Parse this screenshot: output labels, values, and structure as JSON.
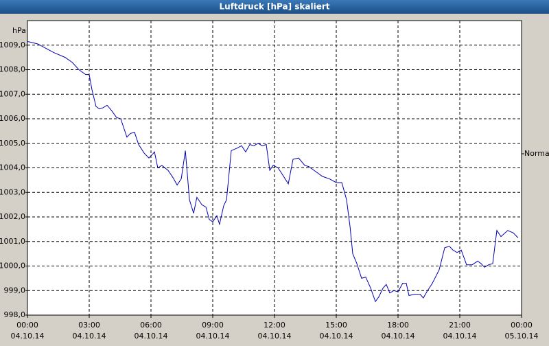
{
  "chart_data": {
    "type": "line",
    "title": "Luftdruck [hPa] skaliert",
    "y_label": "hPa",
    "annotation": "Normal",
    "xlim": [
      0,
      24
    ],
    "ylim": [
      998,
      1010
    ],
    "xticks": [
      {
        "value": 0,
        "label": "00:00",
        "date": "04.10.14"
      },
      {
        "value": 3,
        "label": "03:00",
        "date": "04.10.14"
      },
      {
        "value": 6,
        "label": "06:00",
        "date": "04.10.14"
      },
      {
        "value": 9,
        "label": "09:00",
        "date": "04.10.14"
      },
      {
        "value": 12,
        "label": "12:00",
        "date": "04.10.14"
      },
      {
        "value": 15,
        "label": "15:00",
        "date": "04.10.14"
      },
      {
        "value": 18,
        "label": "18:00",
        "date": "04.10.14"
      },
      {
        "value": 21,
        "label": "21:00",
        "date": "04.10.14"
      },
      {
        "value": 24,
        "label": "00:00",
        "date": "05.10.14"
      }
    ],
    "yticks": [
      {
        "value": 998,
        "label": "998,0"
      },
      {
        "value": 999,
        "label": "999,0"
      },
      {
        "value": 1000,
        "label": "1000,0"
      },
      {
        "value": 1001,
        "label": "1001,0"
      },
      {
        "value": 1002,
        "label": "1002,0"
      },
      {
        "value": 1003,
        "label": "1003,0"
      },
      {
        "value": 1004,
        "label": "1004,0"
      },
      {
        "value": 1005,
        "label": "1005,0"
      },
      {
        "value": 1006,
        "label": "1006,0"
      },
      {
        "value": 1007,
        "label": "1007,0"
      },
      {
        "value": 1008,
        "label": "1008,0"
      },
      {
        "value": 1009,
        "label": "1009,0"
      }
    ],
    "grid": true,
    "x": [
      0,
      0.5,
      0.83,
      1.27,
      1.83,
      2.17,
      2.5,
      2.83,
      3.0,
      3.13,
      3.33,
      3.5,
      3.67,
      3.87,
      4.07,
      4.33,
      4.53,
      4.67,
      4.83,
      5.0,
      5.2,
      5.4,
      5.67,
      5.9,
      6.07,
      6.17,
      6.33,
      6.53,
      6.83,
      7.07,
      7.27,
      7.47,
      7.67,
      7.87,
      8.07,
      8.23,
      8.47,
      8.67,
      8.83,
      9.0,
      9.2,
      9.33,
      9.53,
      9.67,
      9.9,
      10.17,
      10.4,
      10.6,
      10.8,
      11.0,
      11.2,
      11.4,
      11.6,
      11.77,
      11.93,
      12.17,
      12.33,
      12.67,
      12.9,
      13.17,
      13.47,
      13.67,
      14.0,
      14.33,
      14.67,
      15.0,
      15.27,
      15.5,
      15.67,
      15.8,
      16.0,
      16.23,
      16.43,
      16.67,
      16.9,
      17.07,
      17.27,
      17.43,
      17.6,
      17.8,
      18.0,
      18.23,
      18.4,
      18.53,
      18.83,
      19.07,
      19.23,
      19.4,
      19.67,
      20.0,
      20.27,
      20.5,
      20.67,
      20.87,
      21.07,
      21.33,
      21.6,
      21.87,
      22.03,
      22.2,
      22.4,
      22.6,
      22.8,
      23.0,
      23.33,
      23.6,
      23.83
    ],
    "series": [
      {
        "name": "Luftdruck",
        "color": "#0000b4",
        "values": [
          1009.15,
          1009.05,
          1008.9,
          1008.7,
          1008.5,
          1008.3,
          1008.0,
          1007.8,
          1007.8,
          1007.2,
          1006.5,
          1006.4,
          1006.45,
          1006.55,
          1006.35,
          1006.05,
          1006.0,
          1005.65,
          1005.25,
          1005.4,
          1005.45,
          1004.95,
          1004.6,
          1004.4,
          1004.55,
          1004.65,
          1004.0,
          1004.1,
          1003.9,
          1003.6,
          1003.3,
          1003.55,
          1004.7,
          1002.7,
          1002.15,
          1002.8,
          1002.5,
          1002.4,
          1001.9,
          1001.8,
          1002.05,
          1001.7,
          1002.45,
          1002.7,
          1004.7,
          1004.8,
          1004.9,
          1004.65,
          1004.95,
          1004.9,
          1005.0,
          1004.9,
          1004.95,
          1003.9,
          1004.1,
          1004.0,
          1003.8,
          1003.35,
          1004.35,
          1004.4,
          1004.1,
          1004.05,
          1003.85,
          1003.65,
          1003.55,
          1003.4,
          1003.4,
          1002.7,
          1001.6,
          1000.5,
          1000.1,
          999.5,
          999.55,
          999.1,
          998.55,
          998.75,
          999.1,
          999.25,
          998.9,
          999.0,
          998.95,
          999.3,
          999.3,
          998.8,
          998.85,
          998.85,
          998.7,
          998.95,
          999.3,
          999.85,
          1000.75,
          1000.8,
          1000.65,
          1000.55,
          1000.65,
          1000.05,
          1000.05,
          1000.2,
          1000.1,
          999.95,
          1000.05,
          1000.1,
          1001.45,
          1001.2,
          1001.45,
          1001.35,
          1001.15
        ]
      }
    ]
  }
}
